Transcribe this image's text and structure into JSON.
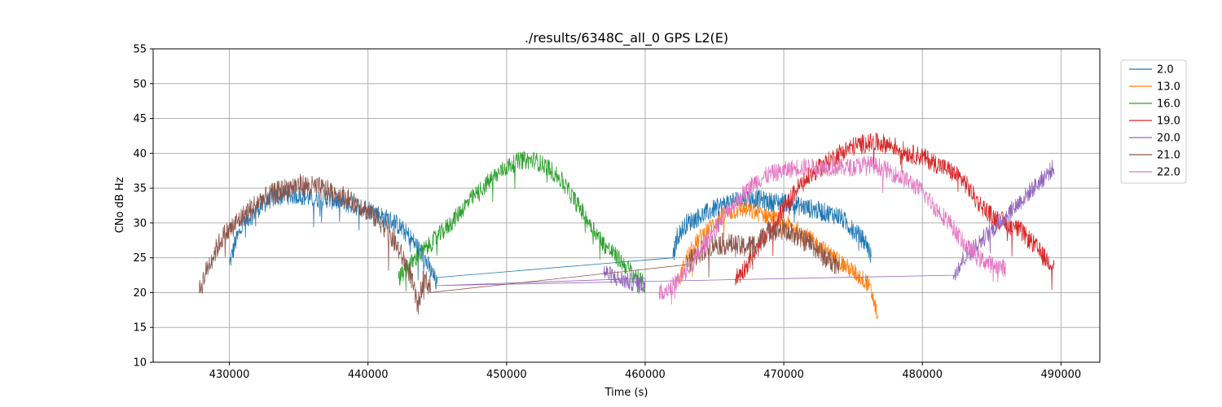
{
  "chart_data": {
    "type": "line",
    "title": "./results/6348C_all_0 GPS L2(E)",
    "xlabel": "Time (s)",
    "ylabel": "CNo dB Hz",
    "xlim": [
      424500,
      492800
    ],
    "ylim": [
      10,
      55
    ],
    "xticks": [
      430000,
      440000,
      450000,
      460000,
      470000,
      480000,
      490000
    ],
    "yticks": [
      10,
      15,
      20,
      25,
      30,
      35,
      40,
      45,
      50,
      55
    ],
    "grid": true,
    "legend_position": "top-right, outside plot",
    "series": [
      {
        "name": "2.0",
        "color": "#1f77b4",
        "noise": 1.4,
        "points": [
          [
            430000,
            24
          ],
          [
            430400,
            27
          ],
          [
            431000,
            30
          ],
          [
            432000,
            32
          ],
          [
            433000,
            33.5
          ],
          [
            434000,
            34
          ],
          [
            435000,
            34
          ],
          [
            436000,
            33.5
          ],
          [
            437000,
            33.5
          ],
          [
            438000,
            33
          ],
          [
            439000,
            32.5
          ],
          [
            440000,
            32
          ],
          [
            441000,
            31
          ],
          [
            442000,
            30
          ],
          [
            443000,
            28
          ],
          [
            443800,
            26
          ],
          [
            444300,
            24
          ],
          [
            444800,
            22
          ],
          [
            445000,
            21
          ],
          [
            462000,
            25
          ],
          [
            462300,
            28
          ],
          [
            463000,
            30
          ],
          [
            464000,
            31
          ],
          [
            465000,
            32
          ],
          [
            466000,
            33
          ],
          [
            467000,
            33.5
          ],
          [
            468000,
            33.5
          ],
          [
            469000,
            33
          ],
          [
            470000,
            33
          ],
          [
            471000,
            32.5
          ],
          [
            472000,
            32
          ],
          [
            473000,
            31.5
          ],
          [
            474000,
            31
          ],
          [
            475000,
            29
          ],
          [
            476000,
            27
          ],
          [
            476300,
            25
          ]
        ]
      },
      {
        "name": "13.0",
        "color": "#ff7f0e",
        "noise": 1.3,
        "points": [
          [
            462500,
            22
          ],
          [
            463000,
            25
          ],
          [
            464000,
            28
          ],
          [
            465000,
            30
          ],
          [
            466000,
            31.5
          ],
          [
            467000,
            32
          ],
          [
            468000,
            31.5
          ],
          [
            469000,
            31
          ],
          [
            470000,
            30
          ],
          [
            471000,
            29
          ],
          [
            472000,
            27.5
          ],
          [
            473000,
            26
          ],
          [
            474000,
            24.5
          ],
          [
            475000,
            23
          ],
          [
            476000,
            21.5
          ],
          [
            476500,
            19
          ],
          [
            476800,
            16
          ]
        ]
      },
      {
        "name": "16.0",
        "color": "#2ca02c",
        "noise": 1.3,
        "points": [
          [
            442200,
            22
          ],
          [
            443000,
            24
          ],
          [
            444000,
            26
          ],
          [
            445000,
            28
          ],
          [
            446000,
            30
          ],
          [
            447000,
            32.5
          ],
          [
            448000,
            34.5
          ],
          [
            449000,
            36.5
          ],
          [
            450000,
            38
          ],
          [
            451000,
            39
          ],
          [
            452000,
            39
          ],
          [
            453000,
            38
          ],
          [
            454000,
            36
          ],
          [
            455000,
            33
          ],
          [
            456000,
            30
          ],
          [
            457000,
            27
          ],
          [
            458000,
            25
          ],
          [
            459000,
            23
          ],
          [
            460000,
            21
          ]
        ]
      },
      {
        "name": "19.0",
        "color": "#d62728",
        "noise": 1.4,
        "points": [
          [
            466500,
            22
          ],
          [
            467000,
            23
          ],
          [
            468000,
            26
          ],
          [
            469000,
            29
          ],
          [
            470000,
            32
          ],
          [
            471000,
            35
          ],
          [
            472000,
            37
          ],
          [
            473000,
            38.5
          ],
          [
            474000,
            40
          ],
          [
            475000,
            41
          ],
          [
            476000,
            41.5
          ],
          [
            477000,
            41.5
          ],
          [
            478000,
            41
          ],
          [
            479000,
            40
          ],
          [
            480000,
            39.5
          ],
          [
            481000,
            38.5
          ],
          [
            482000,
            37.5
          ],
          [
            483000,
            36
          ],
          [
            484000,
            33
          ],
          [
            485000,
            31
          ],
          [
            486000,
            30
          ],
          [
            487000,
            29
          ],
          [
            488000,
            27
          ],
          [
            488800,
            25
          ],
          [
            489500,
            24
          ]
        ]
      },
      {
        "name": "20.0",
        "color": "#9467bd",
        "noise": 1.3,
        "points": [
          [
            457000,
            23
          ],
          [
            458000,
            22
          ],
          [
            459000,
            21.5
          ],
          [
            460000,
            21
          ],
          [
            445000,
            21
          ],
          [
            482200,
            22.5
          ],
          [
            483000,
            25
          ],
          [
            484000,
            27
          ],
          [
            485000,
            29
          ],
          [
            486000,
            31
          ],
          [
            487000,
            33
          ],
          [
            488000,
            35
          ],
          [
            489000,
            37
          ],
          [
            489500,
            38
          ]
        ]
      },
      {
        "name": "21.0",
        "color": "#8c564b",
        "noise": 1.6,
        "points": [
          [
            427800,
            20
          ],
          [
            428500,
            24
          ],
          [
            429500,
            28
          ],
          [
            430500,
            30
          ],
          [
            432000,
            33
          ],
          [
            433500,
            34.5
          ],
          [
            435000,
            35.5
          ],
          [
            436500,
            35
          ],
          [
            438000,
            34
          ],
          [
            439500,
            32.5
          ],
          [
            441000,
            30
          ],
          [
            442000,
            27
          ],
          [
            443000,
            23
          ],
          [
            443600,
            18
          ],
          [
            444000,
            22
          ],
          [
            444500,
            21
          ],
          [
            463000,
            24
          ],
          [
            464000,
            26
          ],
          [
            465000,
            27
          ],
          [
            466000,
            27
          ],
          [
            467000,
            26.5
          ],
          [
            468000,
            27
          ],
          [
            469000,
            29
          ],
          [
            470000,
            29
          ],
          [
            471000,
            28
          ],
          [
            472000,
            27
          ],
          [
            473000,
            25
          ],
          [
            474000,
            24
          ]
        ]
      },
      {
        "name": "22.0",
        "color": "#e377c2",
        "noise": 1.3,
        "points": [
          [
            461000,
            20
          ],
          [
            462000,
            21
          ],
          [
            463000,
            23
          ],
          [
            464000,
            26
          ],
          [
            465000,
            29
          ],
          [
            466000,
            32
          ],
          [
            467000,
            34
          ],
          [
            468000,
            36
          ],
          [
            469000,
            37
          ],
          [
            470000,
            37.5
          ],
          [
            471000,
            38
          ],
          [
            472000,
            38
          ],
          [
            473000,
            38
          ],
          [
            474000,
            38
          ],
          [
            475000,
            38
          ],
          [
            476000,
            38.5
          ],
          [
            477000,
            38
          ],
          [
            478000,
            37
          ],
          [
            479000,
            36
          ],
          [
            480000,
            34.5
          ],
          [
            481000,
            32
          ],
          [
            482000,
            30
          ],
          [
            483000,
            27
          ],
          [
            484000,
            25
          ],
          [
            485000,
            24
          ],
          [
            486000,
            23.5
          ]
        ]
      }
    ]
  }
}
